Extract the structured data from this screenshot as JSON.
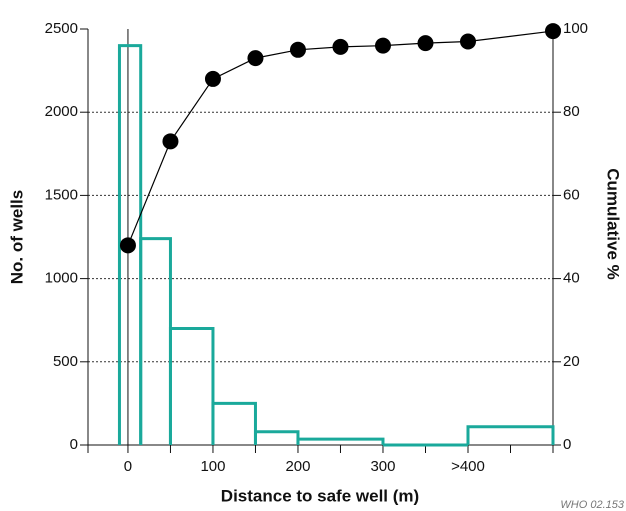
{
  "chart_data": {
    "type": "histogram+line",
    "x_label": "Distance to safe well (m)",
    "y_label": "No. of wells",
    "y2_label": "Cumulative %",
    "note": "WHO 02.153",
    "xlim": [
      -47,
      500
    ],
    "xticks": [
      0,
      100,
      200,
      300,
      {
        "value": 400,
        "label": ">400"
      }
    ],
    "xminorticks": [
      -47,
      50,
      150,
      250,
      350,
      450,
      500
    ],
    "ylim": [
      0,
      2500
    ],
    "yticks": [
      0,
      500,
      1000,
      1500,
      2000,
      2500
    ],
    "y2lim": [
      0,
      100
    ],
    "y2ticks": [
      0,
      20,
      40,
      60,
      80,
      100
    ],
    "grid": true,
    "bins": [
      -10,
      15,
      50,
      100,
      150,
      200,
      300,
      400,
      500
    ],
    "counts": [
      2400,
      1240,
      700,
      250,
      80,
      35,
      0,
      110
    ],
    "hist_color": "#1aa99b",
    "series": [
      {
        "axis": "y2",
        "color": "#000000",
        "x": [
          0,
          50,
          100,
          150,
          200,
          250,
          300,
          350,
          400,
          500
        ],
        "values": [
          48,
          73,
          88,
          93,
          95,
          95.7,
          96,
          96.6,
          97,
          99.5
        ]
      }
    ]
  }
}
